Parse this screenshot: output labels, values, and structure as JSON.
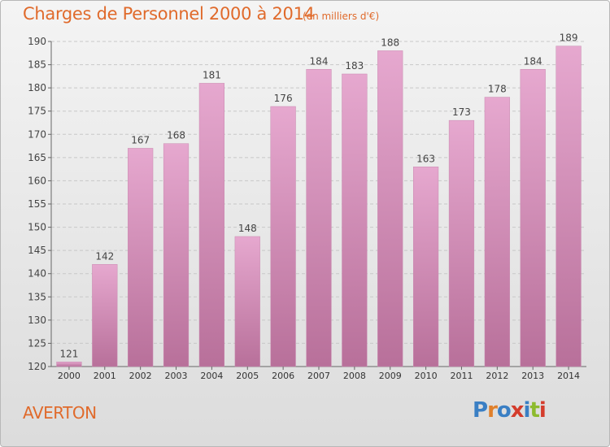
{
  "header": {
    "title": "Charges de Personnel 2000 à 2014",
    "subtitle": "(en milliers d'€)"
  },
  "footer": {
    "town": "AVERTON",
    "logo_text": "Proxiti",
    "logo_colors": [
      "#3a7fc4",
      "#e0802b",
      "#3a7fc4",
      "#d43c2c",
      "#3a7fc4",
      "#8dbb2e",
      "#d43c2c"
    ]
  },
  "colors": {
    "bar_top": "#e6a8cf",
    "bar_bottom": "#b8709a",
    "accent": "#e06a2b"
  },
  "chart_data": {
    "type": "bar",
    "categories": [
      "2000",
      "2001",
      "2002",
      "2003",
      "2004",
      "2005",
      "2006",
      "2007",
      "2008",
      "2009",
      "2010",
      "2011",
      "2012",
      "2013",
      "2014"
    ],
    "values": [
      121,
      142,
      167,
      168,
      181,
      148,
      176,
      184,
      183,
      188,
      163,
      173,
      178,
      184,
      189
    ],
    "ylim": [
      120,
      190
    ],
    "yticks": [
      120,
      125,
      130,
      135,
      140,
      145,
      150,
      155,
      160,
      165,
      170,
      175,
      180,
      185,
      190
    ],
    "grid": true,
    "title": "Charges de Personnel 2000 à 2014",
    "xlabel": "",
    "ylabel": ""
  }
}
